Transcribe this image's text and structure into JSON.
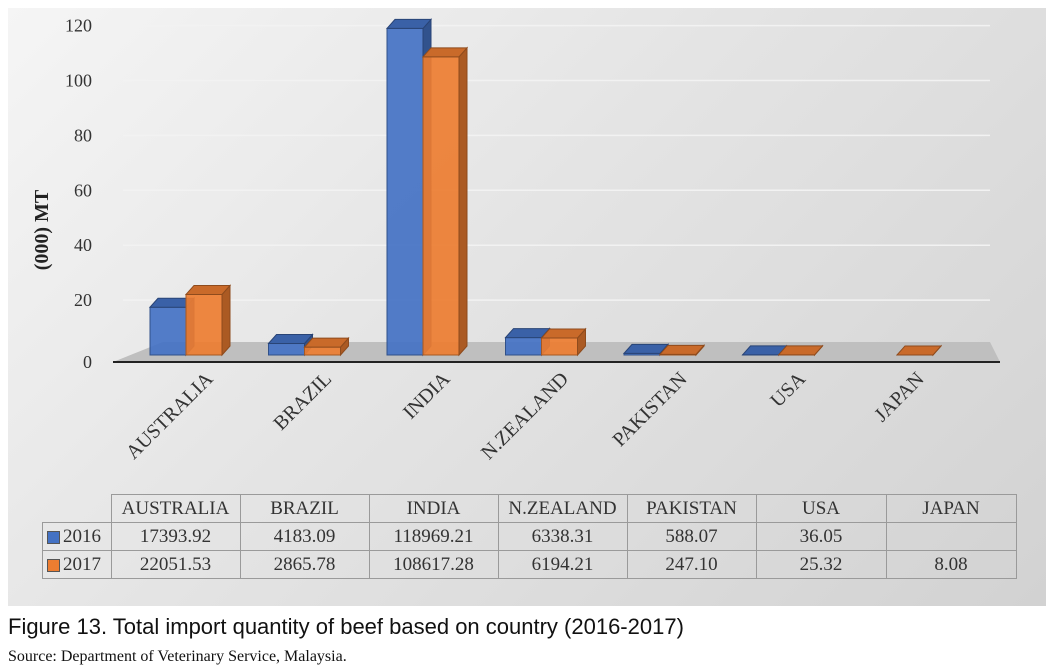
{
  "chart_data": {
    "type": "bar",
    "ylabel": "(000) MT",
    "ylim": [
      0,
      120
    ],
    "yticks": [
      "0",
      "20",
      "40",
      "60",
      "80",
      "100",
      "120"
    ],
    "categories": [
      "AUSTRALIA",
      "BRAZIL",
      "INDIA",
      "N.ZEALAND",
      "PAKISTAN",
      "USA",
      "JAPAN"
    ],
    "series": [
      {
        "name": "2016",
        "color": "#4472c4",
        "values": [
          17.39392,
          4.18309,
          118.96921,
          6.33831,
          0.58807,
          0.03605,
          null
        ]
      },
      {
        "name": "2017",
        "color": "#ed7d31",
        "values": [
          22.05153,
          2.86578,
          108.61728,
          6.19421,
          0.2471,
          0.02532,
          0.00808
        ]
      }
    ],
    "grid": true,
    "legend": "table"
  },
  "table": {
    "headers": [
      "AUSTRALIA",
      "BRAZIL",
      "INDIA",
      "N.ZEALAND",
      "PAKISTAN",
      "USA",
      "JAPAN"
    ],
    "rows": [
      {
        "label": "2016",
        "cells": [
          "17393.92",
          "4183.09",
          "118969.21",
          "6338.31",
          "588.07",
          "36.05",
          ""
        ]
      },
      {
        "label": "2017",
        "cells": [
          "22051.53",
          "2865.78",
          "108617.28",
          "6194.21",
          "247.10",
          "25.32",
          "8.08"
        ]
      }
    ]
  },
  "caption": "Figure 13. Total import quantity of beef based on country (2016-2017)",
  "source": "Source: Department of Veterinary Service, Malaysia."
}
